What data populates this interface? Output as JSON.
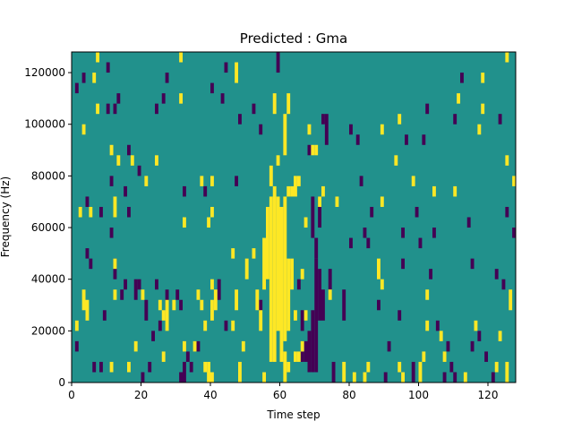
{
  "chart_data": {
    "type": "heatmap",
    "title": "Predicted : Gma",
    "xlabel": "Time step",
    "ylabel": "Frequency (Hz)",
    "xlim": [
      0,
      128
    ],
    "ylim": [
      0,
      128000
    ],
    "x_ticks": [
      0,
      20,
      40,
      60,
      80,
      100,
      120
    ],
    "y_ticks": [
      0,
      20000,
      40000,
      60000,
      80000,
      100000,
      120000
    ],
    "x_tick_labels": [
      "0",
      "20",
      "40",
      "60",
      "80",
      "100",
      "120"
    ],
    "y_tick_labels": [
      "0",
      "20000",
      "40000",
      "60000",
      "80000",
      "100000",
      "120000"
    ],
    "grid": false,
    "legend": "none",
    "colormap": "viridis",
    "levels": {
      "low": "#440154",
      "mid": "#21918c",
      "high": "#fde725"
    },
    "background_level": "mid",
    "cell_height_hz": 4000,
    "description_of_cells": "sparse cells at low (dark) and high (bright) levels on a mid-level background; each entry is [time_step, frequency_start_hz, frequency_end_hz]",
    "high_cells": [
      [
        7,
        124000,
        128000
      ],
      [
        6,
        116000,
        120000
      ],
      [
        7,
        104000,
        108000
      ],
      [
        3,
        96000,
        100000
      ],
      [
        11,
        88000,
        92000
      ],
      [
        13,
        84000,
        88000
      ],
      [
        17,
        84000,
        88000
      ],
      [
        24,
        84000,
        88000
      ],
      [
        21,
        76000,
        80000
      ],
      [
        12,
        64000,
        72000
      ],
      [
        2,
        64000,
        68000
      ],
      [
        5,
        64000,
        68000
      ],
      [
        12,
        44000,
        48000
      ],
      [
        3,
        28000,
        36000
      ],
      [
        4,
        24000,
        32000
      ],
      [
        1,
        20000,
        24000
      ],
      [
        12,
        32000,
        36000
      ],
      [
        20,
        32000,
        36000
      ],
      [
        25,
        28000,
        32000
      ],
      [
        26,
        24000,
        28000
      ],
      [
        27,
        20000,
        32000
      ],
      [
        29,
        28000,
        32000
      ],
      [
        18,
        12000,
        16000
      ],
      [
        26,
        8000,
        12000
      ],
      [
        11,
        4000,
        8000
      ],
      [
        16,
        4000,
        8000
      ],
      [
        31,
        108000,
        112000
      ],
      [
        31,
        124000,
        128000
      ],
      [
        32,
        60000,
        64000
      ],
      [
        36,
        32000,
        36000
      ],
      [
        37,
        28000,
        32000
      ],
      [
        38,
        20000,
        24000
      ],
      [
        35,
        12000,
        16000
      ],
      [
        40,
        36000,
        40000
      ],
      [
        41,
        28000,
        36000
      ],
      [
        40,
        24000,
        32000
      ],
      [
        39,
        60000,
        64000
      ],
      [
        40,
        64000,
        68000
      ],
      [
        37,
        76000,
        80000
      ],
      [
        40,
        76000,
        80000
      ],
      [
        32,
        12000,
        16000
      ],
      [
        38,
        4000,
        8000
      ],
      [
        39,
        0,
        8000
      ],
      [
        40,
        0,
        4000
      ],
      [
        46,
        48000,
        52000
      ],
      [
        46,
        20000,
        24000
      ],
      [
        47,
        28000,
        36000
      ],
      [
        48,
        0,
        8000
      ],
      [
        49,
        12000,
        16000
      ],
      [
        50,
        40000,
        48000
      ],
      [
        52,
        48000,
        52000
      ],
      [
        53,
        28000,
        36000
      ],
      [
        54,
        20000,
        28000
      ],
      [
        55,
        36000,
        56000
      ],
      [
        55,
        0,
        4000
      ],
      [
        47,
        116000,
        124000
      ],
      [
        56,
        40000,
        68000
      ],
      [
        57,
        8000,
        72000
      ],
      [
        58,
        8000,
        76000
      ],
      [
        59,
        20000,
        72000
      ],
      [
        60,
        8000,
        68000
      ],
      [
        61,
        16000,
        72000
      ],
      [
        57,
        76000,
        84000
      ],
      [
        58,
        104000,
        112000
      ],
      [
        59,
        84000,
        88000
      ],
      [
        61,
        88000,
        104000
      ],
      [
        62,
        20000,
        48000
      ],
      [
        63,
        36000,
        48000
      ],
      [
        61,
        0,
        12000
      ],
      [
        62,
        4000,
        8000
      ],
      [
        64,
        24000,
        28000
      ],
      [
        64,
        8000,
        12000
      ],
      [
        65,
        8000,
        12000
      ],
      [
        66,
        40000,
        44000
      ],
      [
        66,
        12000,
        16000
      ],
      [
        62,
        72000,
        76000
      ],
      [
        63,
        72000,
        76000
      ],
      [
        64,
        72000,
        80000
      ],
      [
        65,
        76000,
        80000
      ],
      [
        62,
        104000,
        112000
      ],
      [
        67,
        24000,
        28000
      ],
      [
        67,
        60000,
        64000
      ],
      [
        68,
        96000,
        100000
      ],
      [
        69,
        88000,
        92000
      ],
      [
        70,
        88000,
        92000
      ],
      [
        71,
        68000,
        72000
      ],
      [
        72,
        72000,
        76000
      ],
      [
        74,
        32000,
        36000
      ],
      [
        76,
        68000,
        72000
      ],
      [
        78,
        0,
        8000
      ],
      [
        81,
        0,
        4000
      ],
      [
        84,
        0,
        4000
      ],
      [
        85,
        4000,
        8000
      ],
      [
        88,
        40000,
        48000
      ],
      [
        89,
        96000,
        100000
      ],
      [
        89,
        68000,
        72000
      ],
      [
        89,
        36000,
        40000
      ],
      [
        93,
        84000,
        88000
      ],
      [
        94,
        4000,
        8000
      ],
      [
        95,
        0,
        4000
      ],
      [
        98,
        76000,
        80000
      ],
      [
        100,
        0,
        8000
      ],
      [
        102,
        32000,
        36000
      ],
      [
        102,
        20000,
        24000
      ],
      [
        104,
        72000,
        76000
      ],
      [
        106,
        16000,
        20000
      ],
      [
        107,
        8000,
        12000
      ],
      [
        110,
        72000,
        76000
      ],
      [
        111,
        108000,
        112000
      ],
      [
        113,
        0,
        4000
      ],
      [
        117,
        96000,
        100000
      ],
      [
        118,
        104000,
        108000
      ],
      [
        118,
        116000,
        120000
      ],
      [
        122,
        4000,
        8000
      ],
      [
        123,
        16000,
        20000
      ],
      [
        125,
        0,
        8000
      ],
      [
        125,
        124000,
        128000
      ],
      [
        125,
        84000,
        88000
      ],
      [
        126,
        28000,
        36000
      ],
      [
        127,
        76000,
        80000
      ],
      [
        116,
        20000,
        24000
      ],
      [
        101,
        8000,
        12000
      ],
      [
        94,
        100000,
        104000
      ]
    ],
    "low_cells": [
      [
        3,
        116000,
        120000
      ],
      [
        1,
        112000,
        116000
      ],
      [
        12,
        104000,
        108000
      ],
      [
        10,
        104000,
        108000
      ],
      [
        13,
        108000,
        112000
      ],
      [
        10,
        120000,
        124000
      ],
      [
        16,
        88000,
        92000
      ],
      [
        19,
        80000,
        84000
      ],
      [
        11,
        76000,
        80000
      ],
      [
        15,
        72000,
        76000
      ],
      [
        4,
        68000,
        72000
      ],
      [
        8,
        64000,
        68000
      ],
      [
        11,
        56000,
        60000
      ],
      [
        4,
        48000,
        52000
      ],
      [
        5,
        44000,
        48000
      ],
      [
        16,
        64000,
        68000
      ],
      [
        9,
        24000,
        28000
      ],
      [
        12,
        40000,
        48000
      ],
      [
        14,
        32000,
        36000
      ],
      [
        18,
        32000,
        40000
      ],
      [
        19,
        36000,
        40000
      ],
      [
        21,
        24000,
        32000
      ],
      [
        24,
        36000,
        40000
      ],
      [
        27,
        28000,
        36000
      ],
      [
        15,
        36000,
        40000
      ],
      [
        23,
        16000,
        20000
      ],
      [
        25,
        20000,
        24000
      ],
      [
        1,
        12000,
        16000
      ],
      [
        20,
        0,
        4000
      ],
      [
        22,
        4000,
        8000
      ],
      [
        6,
        4000,
        8000
      ],
      [
        8,
        4000,
        8000
      ],
      [
        24,
        104000,
        108000
      ],
      [
        26,
        108000,
        112000
      ],
      [
        27,
        116000,
        120000
      ],
      [
        32,
        72000,
        76000
      ],
      [
        30,
        32000,
        36000
      ],
      [
        31,
        28000,
        32000
      ],
      [
        31,
        0,
        4000
      ],
      [
        32,
        0,
        8000
      ],
      [
        33,
        8000,
        12000
      ],
      [
        34,
        4000,
        8000
      ],
      [
        36,
        12000,
        16000
      ],
      [
        38,
        72000,
        76000
      ],
      [
        40,
        112000,
        116000
      ],
      [
        43,
        108000,
        112000
      ],
      [
        44,
        120000,
        124000
      ],
      [
        48,
        100000,
        104000
      ],
      [
        47,
        76000,
        80000
      ],
      [
        42,
        32000,
        40000
      ],
      [
        44,
        20000,
        24000
      ],
      [
        54,
        28000,
        32000
      ],
      [
        52,
        104000,
        108000
      ],
      [
        54,
        96000,
        100000
      ],
      [
        59,
        120000,
        128000
      ],
      [
        63,
        40000,
        44000
      ],
      [
        65,
        36000,
        40000
      ],
      [
        66,
        20000,
        28000
      ],
      [
        66,
        8000,
        12000
      ],
      [
        67,
        8000,
        16000
      ],
      [
        68,
        4000,
        20000
      ],
      [
        69,
        4000,
        28000
      ],
      [
        70,
        4000,
        48000
      ],
      [
        71,
        24000,
        44000
      ],
      [
        72,
        24000,
        36000
      ],
      [
        69,
        56000,
        72000
      ],
      [
        70,
        48000,
        56000
      ],
      [
        71,
        60000,
        64000
      ],
      [
        68,
        88000,
        92000
      ],
      [
        71,
        64000,
        72000
      ],
      [
        72,
        100000,
        104000
      ],
      [
        73,
        92000,
        104000
      ],
      [
        74,
        36000,
        44000
      ],
      [
        75,
        0,
        8000
      ],
      [
        78,
        24000,
        36000
      ],
      [
        80,
        52000,
        56000
      ],
      [
        80,
        96000,
        100000
      ],
      [
        82,
        92000,
        96000
      ],
      [
        83,
        76000,
        80000
      ],
      [
        84,
        56000,
        60000
      ],
      [
        85,
        52000,
        56000
      ],
      [
        86,
        64000,
        68000
      ],
      [
        88,
        28000,
        32000
      ],
      [
        90,
        0,
        4000
      ],
      [
        91,
        12000,
        16000
      ],
      [
        94,
        24000,
        28000
      ],
      [
        95,
        56000,
        60000
      ],
      [
        95,
        44000,
        48000
      ],
      [
        96,
        92000,
        96000
      ],
      [
        98,
        0,
        8000
      ],
      [
        99,
        64000,
        68000
      ],
      [
        100,
        52000,
        56000
      ],
      [
        101,
        92000,
        96000
      ],
      [
        102,
        104000,
        108000
      ],
      [
        103,
        40000,
        44000
      ],
      [
        104,
        56000,
        60000
      ],
      [
        105,
        20000,
        24000
      ],
      [
        107,
        0,
        4000
      ],
      [
        108,
        12000,
        16000
      ],
      [
        109,
        4000,
        8000
      ],
      [
        110,
        0,
        4000
      ],
      [
        114,
        60000,
        64000
      ],
      [
        115,
        44000,
        48000
      ],
      [
        117,
        16000,
        20000
      ],
      [
        119,
        8000,
        12000
      ],
      [
        121,
        0,
        4000
      ],
      [
        122,
        40000,
        44000
      ],
      [
        123,
        100000,
        104000
      ],
      [
        125,
        64000,
        68000
      ],
      [
        127,
        56000,
        60000
      ],
      [
        115,
        12000,
        16000
      ],
      [
        110,
        100000,
        104000
      ],
      [
        112,
        116000,
        120000
      ],
      [
        124,
        36000,
        40000
      ]
    ]
  }
}
